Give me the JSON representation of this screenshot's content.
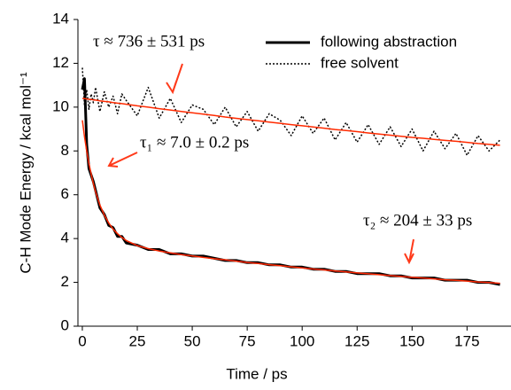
{
  "chart_data": {
    "type": "line",
    "xlabel": "Time / ps",
    "ylabel": "C-H Mode Energy / kcal mol⁻¹",
    "x": [
      0,
      1,
      2,
      3,
      4,
      5,
      6,
      8,
      10,
      12,
      14,
      16,
      18,
      20,
      25,
      30,
      35,
      40,
      45,
      50,
      55,
      60,
      65,
      70,
      75,
      80,
      85,
      90,
      95,
      100,
      105,
      110,
      115,
      120,
      125,
      130,
      135,
      140,
      145,
      150,
      155,
      160,
      165,
      170,
      175,
      180,
      185,
      190
    ],
    "xlim": [
      -2,
      195
    ],
    "xticks": [
      0,
      25,
      50,
      75,
      100,
      125,
      150,
      175
    ],
    "ylim": [
      0,
      14
    ],
    "yticks": [
      0,
      2,
      4,
      6,
      8,
      10,
      12,
      14
    ],
    "grid": false,
    "legend": "upper right",
    "series": [
      {
        "name": "free solvent",
        "color": "#000000",
        "dash": "dotted",
        "width": 1.5,
        "values": [
          11.8,
          10.1,
          10.8,
          9.9,
          10.6,
          10.2,
          10.9,
          9.8,
          10.7,
          10.0,
          10.5,
          9.7,
          10.6,
          10.3,
          9.6,
          10.9,
          9.5,
          10.4,
          9.3,
          10.1,
          9.9,
          9.2,
          10.0,
          9.1,
          9.8,
          8.9,
          9.7,
          9.4,
          8.7,
          9.6,
          8.8,
          9.5,
          8.5,
          9.3,
          8.4,
          9.2,
          8.3,
          9.1,
          8.2,
          9.0,
          8.0,
          8.9,
          8.1,
          8.8,
          7.8,
          8.7,
          8.0,
          8.5
        ]
      },
      {
        "name": "following abstraction",
        "color": "#000000",
        "dash": "solid",
        "width": 3,
        "values": [
          10.8,
          11.3,
          8.3,
          7.2,
          6.9,
          6.6,
          6.2,
          5.4,
          5.1,
          4.6,
          4.5,
          4.1,
          4.1,
          3.8,
          3.7,
          3.5,
          3.5,
          3.3,
          3.3,
          3.2,
          3.2,
          3.1,
          3.0,
          3.0,
          2.9,
          2.9,
          2.8,
          2.8,
          2.7,
          2.7,
          2.6,
          2.6,
          2.5,
          2.5,
          2.4,
          2.4,
          2.4,
          2.3,
          2.3,
          2.2,
          2.2,
          2.2,
          2.1,
          2.1,
          2.1,
          2.0,
          2.0,
          1.9
        ]
      },
      {
        "color": "#ff2a00",
        "dash": "solid",
        "width": 1.5,
        "values": [
          10.4,
          10.39,
          10.37,
          10.36,
          10.35,
          10.33,
          10.32,
          10.29,
          10.26,
          10.24,
          10.21,
          10.18,
          10.16,
          10.13,
          10.06,
          10.0,
          9.93,
          9.87,
          9.8,
          9.74,
          9.68,
          9.62,
          9.55,
          9.49,
          9.43,
          9.38,
          9.32,
          9.26,
          9.2,
          9.15,
          9.09,
          9.04,
          8.98,
          8.93,
          8.88,
          8.82,
          8.77,
          8.72,
          8.67,
          8.62,
          8.58,
          8.53,
          8.48,
          8.44,
          8.39,
          8.34,
          8.3,
          8.26
        ]
      },
      {
        "color": "#ff2a00",
        "dash": "solid",
        "width": 1.5,
        "values": [
          9.4,
          8.65,
          8.0,
          7.43,
          6.95,
          6.52,
          6.14,
          5.53,
          5.07,
          4.71,
          4.43,
          4.22,
          4.05,
          3.91,
          3.68,
          3.54,
          3.43,
          3.35,
          3.27,
          3.21,
          3.14,
          3.08,
          3.03,
          2.97,
          2.91,
          2.86,
          2.81,
          2.76,
          2.71,
          2.66,
          2.61,
          2.57,
          2.52,
          2.48,
          2.43,
          2.39,
          2.35,
          2.31,
          2.27,
          2.23,
          2.2,
          2.16,
          2.12,
          2.09,
          2.06,
          2.02,
          1.99,
          1.96
        ]
      }
    ],
    "annotations": [
      "τ ≈ 736 ± 531 ps",
      "τ₁ ≈ 7.0 ± 0.2 ps",
      "τ₂ ≈ 204 ± 33 ps"
    ]
  }
}
